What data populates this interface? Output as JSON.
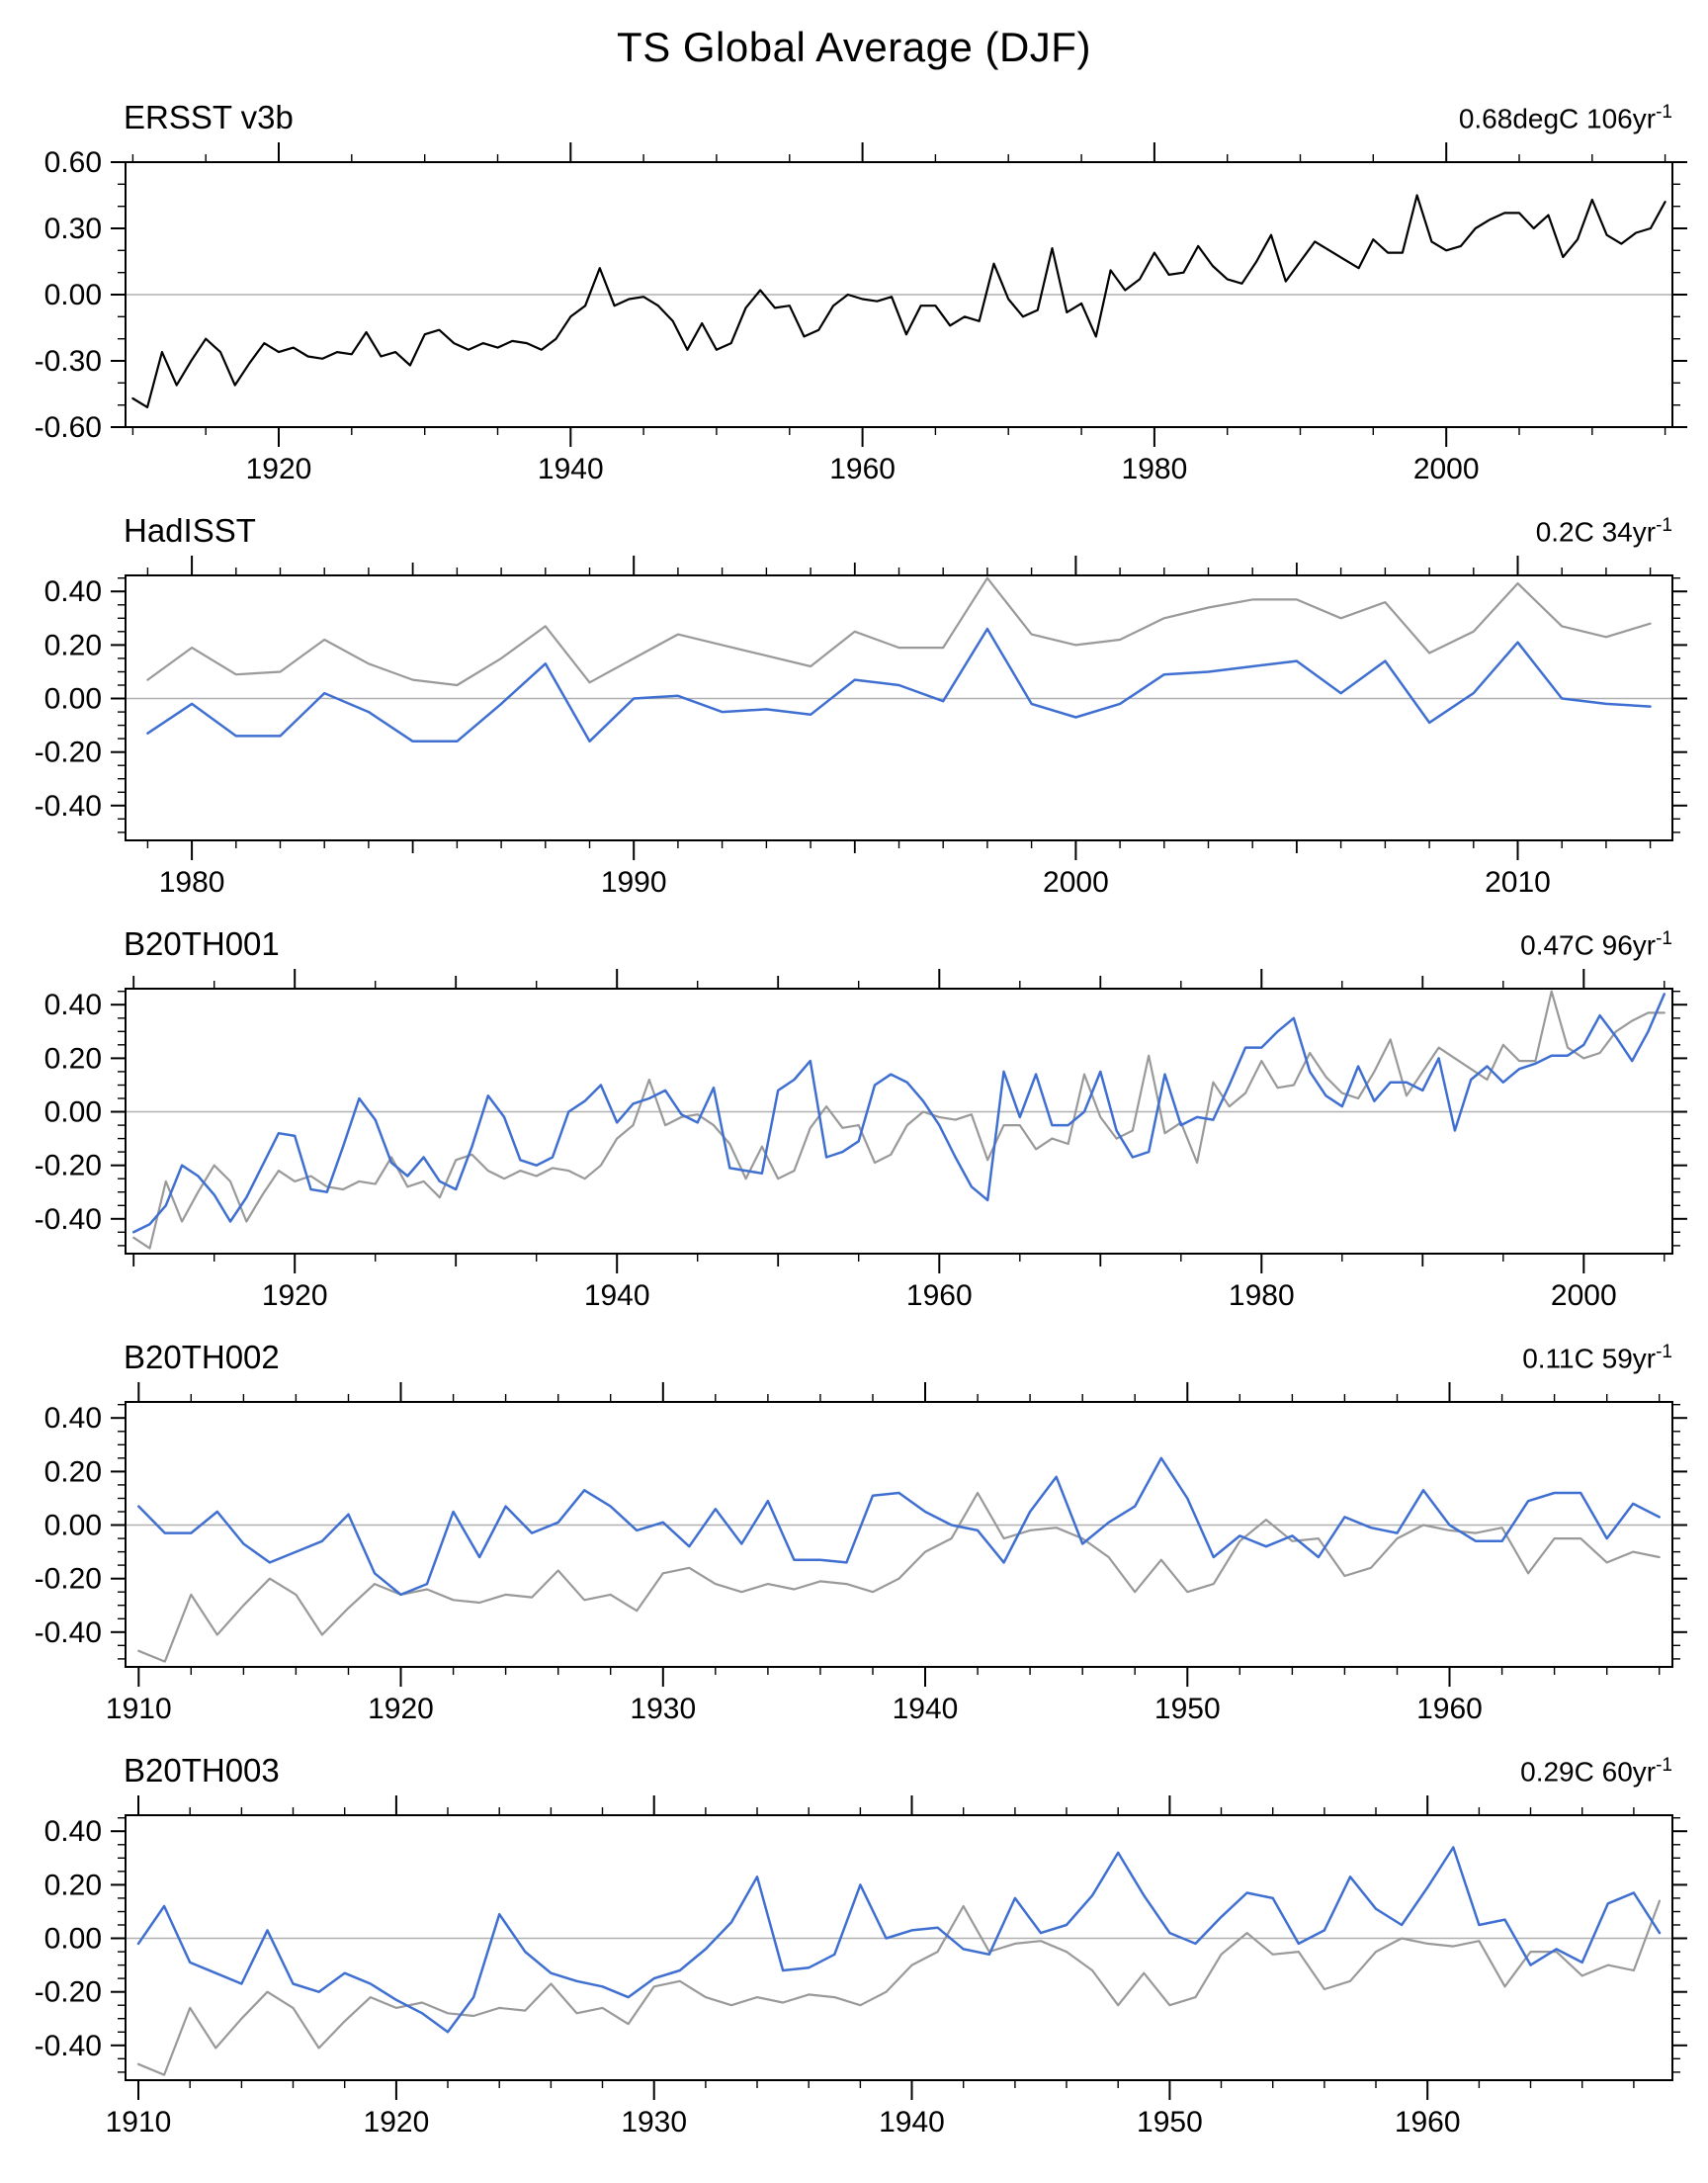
{
  "title": "TS Global Average (DJF)",
  "colors": {
    "obs_black": "#000000",
    "model_blue": "#3f6fd1",
    "ref_gray": "#999999",
    "zero_line": "#b0b0b0",
    "frame": "#000000"
  },
  "chart_data": [
    {
      "type": "line",
      "title": "ERSST v3b",
      "trend": "0.68degC 106yr",
      "trend_exp": "-1",
      "x_start": 1910,
      "x_end": 2015,
      "x_step": 1,
      "x_tick_years": [
        1920,
        1940,
        1960,
        1980,
        2000
      ],
      "x_tick_labels": [
        "1920",
        "1940",
        "1960",
        "1980",
        "2000"
      ],
      "x_minor_step": 5,
      "x_medium_step": null,
      "ylim": [
        -0.6,
        0.6
      ],
      "y_ticks": [
        0.6,
        0.3,
        0.0,
        -0.3,
        -0.6
      ],
      "y_tick_labels": [
        "0.60",
        "0.30",
        "0.00",
        "-0.30",
        "-0.60"
      ],
      "y_minor_step": 0.1,
      "grid": "zero-line-only",
      "legend": "none",
      "series": [
        {
          "name": "ERSST v3b",
          "slug": "ersst-v3b",
          "color_key": "obs_black",
          "width": 2.2,
          "values": [
            -0.47,
            -0.51,
            -0.26,
            -0.41,
            -0.3,
            -0.2,
            -0.26,
            -0.41,
            -0.31,
            -0.22,
            -0.26,
            -0.24,
            -0.28,
            -0.29,
            -0.26,
            -0.27,
            -0.17,
            -0.28,
            -0.26,
            -0.32,
            -0.18,
            -0.16,
            -0.22,
            -0.25,
            -0.22,
            -0.24,
            -0.21,
            -0.22,
            -0.25,
            -0.2,
            -0.1,
            -0.05,
            0.12,
            -0.05,
            -0.02,
            -0.01,
            -0.05,
            -0.12,
            -0.25,
            -0.13,
            -0.25,
            -0.22,
            -0.06,
            0.02,
            -0.06,
            -0.05,
            -0.19,
            -0.16,
            -0.05,
            0.0,
            -0.02,
            -0.03,
            -0.01,
            -0.18,
            -0.05,
            -0.05,
            -0.14,
            -0.1,
            -0.12,
            0.14,
            -0.02,
            -0.1,
            -0.07,
            0.21,
            -0.08,
            -0.04,
            -0.19,
            0.11,
            0.02,
            0.07,
            0.19,
            0.09,
            0.1,
            0.22,
            0.13,
            0.07,
            0.05,
            0.15,
            0.27,
            0.06,
            0.15,
            0.24,
            0.2,
            0.16,
            0.12,
            0.25,
            0.19,
            0.19,
            0.45,
            0.24,
            0.2,
            0.22,
            0.3,
            0.34,
            0.37,
            0.37,
            0.3,
            0.36,
            0.17,
            0.25,
            0.43,
            0.27,
            0.23,
            0.28,
            0.3,
            0.42
          ]
        }
      ]
    },
    {
      "type": "line",
      "title": "HadISST",
      "trend": "0.2C 34yr",
      "trend_exp": "-1",
      "x_start": 1979,
      "x_end": 2013,
      "x_step": 1,
      "x_tick_years": [
        1980,
        1990,
        2000,
        2010
      ],
      "x_tick_labels": [
        "1980",
        "1990",
        "2000",
        "2010"
      ],
      "x_minor_step": 1,
      "x_medium_step": 5,
      "ylim": [
        -0.53,
        0.46
      ],
      "y_ticks": [
        0.4,
        0.2,
        0.0,
        -0.2,
        -0.4
      ],
      "y_tick_labels": [
        "0.40",
        "0.20",
        "0.00",
        "-0.20",
        "-0.40"
      ],
      "y_minor_step": 0.05,
      "grid": "zero-line-only",
      "legend": "none",
      "series": [
        {
          "name": "ERSST v3b reference",
          "slug": "ersst-ref",
          "color_key": "ref_gray",
          "width": 2.2,
          "values": [
            0.07,
            0.19,
            0.09,
            0.1,
            0.22,
            0.13,
            0.07,
            0.05,
            0.15,
            0.27,
            0.06,
            0.15,
            0.24,
            0.2,
            0.16,
            0.12,
            0.25,
            0.19,
            0.19,
            0.45,
            0.24,
            0.2,
            0.22,
            0.3,
            0.34,
            0.37,
            0.37,
            0.3,
            0.36,
            0.17,
            0.25,
            0.43,
            0.27,
            0.23,
            0.28
          ]
        },
        {
          "name": "HadISST",
          "slug": "hadisst",
          "color_key": "model_blue",
          "width": 2.5,
          "values": [
            -0.13,
            -0.02,
            -0.14,
            -0.14,
            0.02,
            -0.05,
            -0.16,
            -0.16,
            -0.02,
            0.13,
            -0.16,
            0.0,
            0.01,
            -0.05,
            -0.04,
            -0.06,
            0.07,
            0.05,
            -0.01,
            0.26,
            -0.02,
            -0.07,
            -0.02,
            0.09,
            0.1,
            0.12,
            0.14,
            0.02,
            0.14,
            -0.09,
            0.02,
            0.21,
            0.0,
            -0.02,
            -0.03
          ]
        }
      ]
    },
    {
      "type": "line",
      "title": "B20TH001",
      "trend": "0.47C 96yr",
      "trend_exp": "-1",
      "x_start": 1910,
      "x_end": 2005,
      "x_step": 1,
      "x_tick_years": [
        1920,
        1940,
        1960,
        1980,
        2000
      ],
      "x_tick_labels": [
        "1920",
        "1940",
        "1960",
        "1980",
        "2000"
      ],
      "x_minor_step": 5,
      "x_medium_step": 10,
      "ylim": [
        -0.53,
        0.46
      ],
      "y_ticks": [
        0.4,
        0.2,
        0.0,
        -0.2,
        -0.4
      ],
      "y_tick_labels": [
        "0.40",
        "0.20",
        "0.00",
        "-0.20",
        "-0.40"
      ],
      "y_minor_step": 0.05,
      "grid": "zero-line-only",
      "legend": "none",
      "series": [
        {
          "name": "ERSST v3b reference",
          "slug": "ersst-ref",
          "color_key": "ref_gray",
          "width": 2.2,
          "values": [
            -0.47,
            -0.51,
            -0.26,
            -0.41,
            -0.3,
            -0.2,
            -0.26,
            -0.41,
            -0.31,
            -0.22,
            -0.26,
            -0.24,
            -0.28,
            -0.29,
            -0.26,
            -0.27,
            -0.17,
            -0.28,
            -0.26,
            -0.32,
            -0.18,
            -0.16,
            -0.22,
            -0.25,
            -0.22,
            -0.24,
            -0.21,
            -0.22,
            -0.25,
            -0.2,
            -0.1,
            -0.05,
            0.12,
            -0.05,
            -0.02,
            -0.01,
            -0.05,
            -0.12,
            -0.25,
            -0.13,
            -0.25,
            -0.22,
            -0.06,
            0.02,
            -0.06,
            -0.05,
            -0.19,
            -0.16,
            -0.05,
            0.0,
            -0.02,
            -0.03,
            -0.01,
            -0.18,
            -0.05,
            -0.05,
            -0.14,
            -0.1,
            -0.12,
            0.14,
            -0.02,
            -0.1,
            -0.07,
            0.21,
            -0.08,
            -0.04,
            -0.19,
            0.11,
            0.02,
            0.07,
            0.19,
            0.09,
            0.1,
            0.22,
            0.13,
            0.07,
            0.05,
            0.15,
            0.27,
            0.06,
            0.15,
            0.24,
            0.2,
            0.16,
            0.12,
            0.25,
            0.19,
            0.19,
            0.45,
            0.24,
            0.2,
            0.22,
            0.3,
            0.34,
            0.37,
            0.37
          ]
        },
        {
          "name": "B20TH001",
          "slug": "b20th001",
          "color_key": "model_blue",
          "width": 2.5,
          "values": [
            -0.45,
            -0.42,
            -0.35,
            -0.2,
            -0.24,
            -0.31,
            -0.41,
            -0.32,
            -0.2,
            -0.08,
            -0.09,
            -0.29,
            -0.3,
            -0.13,
            0.05,
            -0.03,
            -0.19,
            -0.24,
            -0.17,
            -0.26,
            -0.29,
            -0.13,
            0.06,
            -0.02,
            -0.18,
            -0.2,
            -0.17,
            0.0,
            0.04,
            0.1,
            -0.04,
            0.03,
            0.05,
            0.08,
            -0.01,
            -0.04,
            0.09,
            -0.21,
            -0.22,
            -0.23,
            0.08,
            0.12,
            0.19,
            -0.17,
            -0.15,
            -0.11,
            0.1,
            0.14,
            0.11,
            0.04,
            -0.05,
            -0.17,
            -0.28,
            -0.33,
            0.15,
            -0.02,
            0.14,
            -0.05,
            -0.05,
            0.0,
            0.15,
            -0.07,
            -0.17,
            -0.15,
            0.14,
            -0.05,
            -0.02,
            -0.03,
            0.1,
            0.24,
            0.24,
            0.3,
            0.35,
            0.15,
            0.06,
            0.02,
            0.17,
            0.04,
            0.11,
            0.11,
            0.08,
            0.2,
            -0.07,
            0.12,
            0.17,
            0.11,
            0.16,
            0.18,
            0.21,
            0.21,
            0.25,
            0.36,
            0.28,
            0.19,
            0.3,
            0.44
          ]
        }
      ]
    },
    {
      "type": "line",
      "title": "B20TH002",
      "trend": "0.11C 59yr",
      "trend_exp": "-1",
      "x_start": 1910,
      "x_end": 1968,
      "x_step": 1,
      "x_tick_years": [
        1910,
        1920,
        1930,
        1940,
        1950,
        1960
      ],
      "x_tick_labels": [
        "1910",
        "1920",
        "1930",
        "1940",
        "1950",
        "1960"
      ],
      "x_minor_step": 2,
      "x_medium_step": null,
      "ylim": [
        -0.53,
        0.46
      ],
      "y_ticks": [
        0.4,
        0.2,
        0.0,
        -0.2,
        -0.4
      ],
      "y_tick_labels": [
        "0.40",
        "0.20",
        "0.00",
        "-0.20",
        "-0.40"
      ],
      "y_minor_step": 0.05,
      "grid": "zero-line-only",
      "legend": "none",
      "series": [
        {
          "name": "ERSST v3b reference",
          "slug": "ersst-ref",
          "color_key": "ref_gray",
          "width": 2.2,
          "values": [
            -0.47,
            -0.51,
            -0.26,
            -0.41,
            -0.3,
            -0.2,
            -0.26,
            -0.41,
            -0.31,
            -0.22,
            -0.26,
            -0.24,
            -0.28,
            -0.29,
            -0.26,
            -0.27,
            -0.17,
            -0.28,
            -0.26,
            -0.32,
            -0.18,
            -0.16,
            -0.22,
            -0.25,
            -0.22,
            -0.24,
            -0.21,
            -0.22,
            -0.25,
            -0.2,
            -0.1,
            -0.05,
            0.12,
            -0.05,
            -0.02,
            -0.01,
            -0.05,
            -0.12,
            -0.25,
            -0.13,
            -0.25,
            -0.22,
            -0.06,
            0.02,
            -0.06,
            -0.05,
            -0.19,
            -0.16,
            -0.05,
            0.0,
            -0.02,
            -0.03,
            -0.01,
            -0.18,
            -0.05,
            -0.05,
            -0.14,
            -0.1,
            -0.12
          ]
        },
        {
          "name": "B20TH002",
          "slug": "b20th002",
          "color_key": "model_blue",
          "width": 2.5,
          "values": [
            0.07,
            -0.03,
            -0.03,
            0.05,
            -0.07,
            -0.14,
            -0.1,
            -0.06,
            0.04,
            -0.18,
            -0.26,
            -0.22,
            0.05,
            -0.12,
            0.07,
            -0.03,
            0.01,
            0.13,
            0.07,
            -0.02,
            0.01,
            -0.08,
            0.06,
            -0.07,
            0.09,
            -0.13,
            -0.13,
            -0.14,
            0.11,
            0.12,
            0.05,
            0.0,
            -0.02,
            -0.14,
            0.05,
            0.18,
            -0.07,
            0.01,
            0.07,
            0.25,
            0.1,
            -0.12,
            -0.04,
            -0.08,
            -0.04,
            -0.12,
            0.03,
            -0.01,
            -0.03,
            0.13,
            0.0,
            -0.06,
            -0.06,
            0.09,
            0.12,
            0.12,
            -0.05,
            0.08,
            0.03
          ]
        }
      ]
    },
    {
      "type": "line",
      "title": "B20TH003",
      "trend": "0.29C 60yr",
      "trend_exp": "-1",
      "x_start": 1910,
      "x_end": 1969,
      "x_step": 1,
      "x_tick_years": [
        1910,
        1920,
        1930,
        1940,
        1950,
        1960
      ],
      "x_tick_labels": [
        "1910",
        "1920",
        "1930",
        "1940",
        "1950",
        "1960"
      ],
      "x_minor_step": 2,
      "x_medium_step": null,
      "ylim": [
        -0.53,
        0.46
      ],
      "y_ticks": [
        0.4,
        0.2,
        0.0,
        -0.2,
        -0.4
      ],
      "y_tick_labels": [
        "0.40",
        "0.20",
        "0.00",
        "-0.20",
        "-0.40"
      ],
      "y_minor_step": 0.05,
      "grid": "zero-line-only",
      "legend": "none",
      "series": [
        {
          "name": "ERSST v3b reference",
          "slug": "ersst-ref",
          "color_key": "ref_gray",
          "width": 2.2,
          "values": [
            -0.47,
            -0.51,
            -0.26,
            -0.41,
            -0.3,
            -0.2,
            -0.26,
            -0.41,
            -0.31,
            -0.22,
            -0.26,
            -0.24,
            -0.28,
            -0.29,
            -0.26,
            -0.27,
            -0.17,
            -0.28,
            -0.26,
            -0.32,
            -0.18,
            -0.16,
            -0.22,
            -0.25,
            -0.22,
            -0.24,
            -0.21,
            -0.22,
            -0.25,
            -0.2,
            -0.1,
            -0.05,
            0.12,
            -0.05,
            -0.02,
            -0.01,
            -0.05,
            -0.12,
            -0.25,
            -0.13,
            -0.25,
            -0.22,
            -0.06,
            0.02,
            -0.06,
            -0.05,
            -0.19,
            -0.16,
            -0.05,
            0.0,
            -0.02,
            -0.03,
            -0.01,
            -0.18,
            -0.05,
            -0.05,
            -0.14,
            -0.1,
            -0.12,
            0.14
          ]
        },
        {
          "name": "B20TH003",
          "slug": "b20th003",
          "color_key": "model_blue",
          "width": 2.5,
          "values": [
            -0.02,
            0.12,
            -0.09,
            -0.13,
            -0.17,
            0.03,
            -0.17,
            -0.2,
            -0.13,
            -0.17,
            -0.23,
            -0.28,
            -0.35,
            -0.22,
            0.09,
            -0.05,
            -0.13,
            -0.16,
            -0.18,
            -0.22,
            -0.15,
            -0.12,
            -0.04,
            0.06,
            0.23,
            -0.12,
            -0.11,
            -0.06,
            0.2,
            0.0,
            0.03,
            0.04,
            -0.04,
            -0.06,
            0.15,
            0.02,
            0.05,
            0.16,
            0.32,
            0.16,
            0.02,
            -0.02,
            0.08,
            0.17,
            0.15,
            -0.02,
            0.03,
            0.23,
            0.11,
            0.05,
            0.19,
            0.34,
            0.05,
            0.07,
            -0.1,
            -0.04,
            -0.09,
            0.13,
            0.17,
            0.02
          ]
        }
      ]
    }
  ]
}
